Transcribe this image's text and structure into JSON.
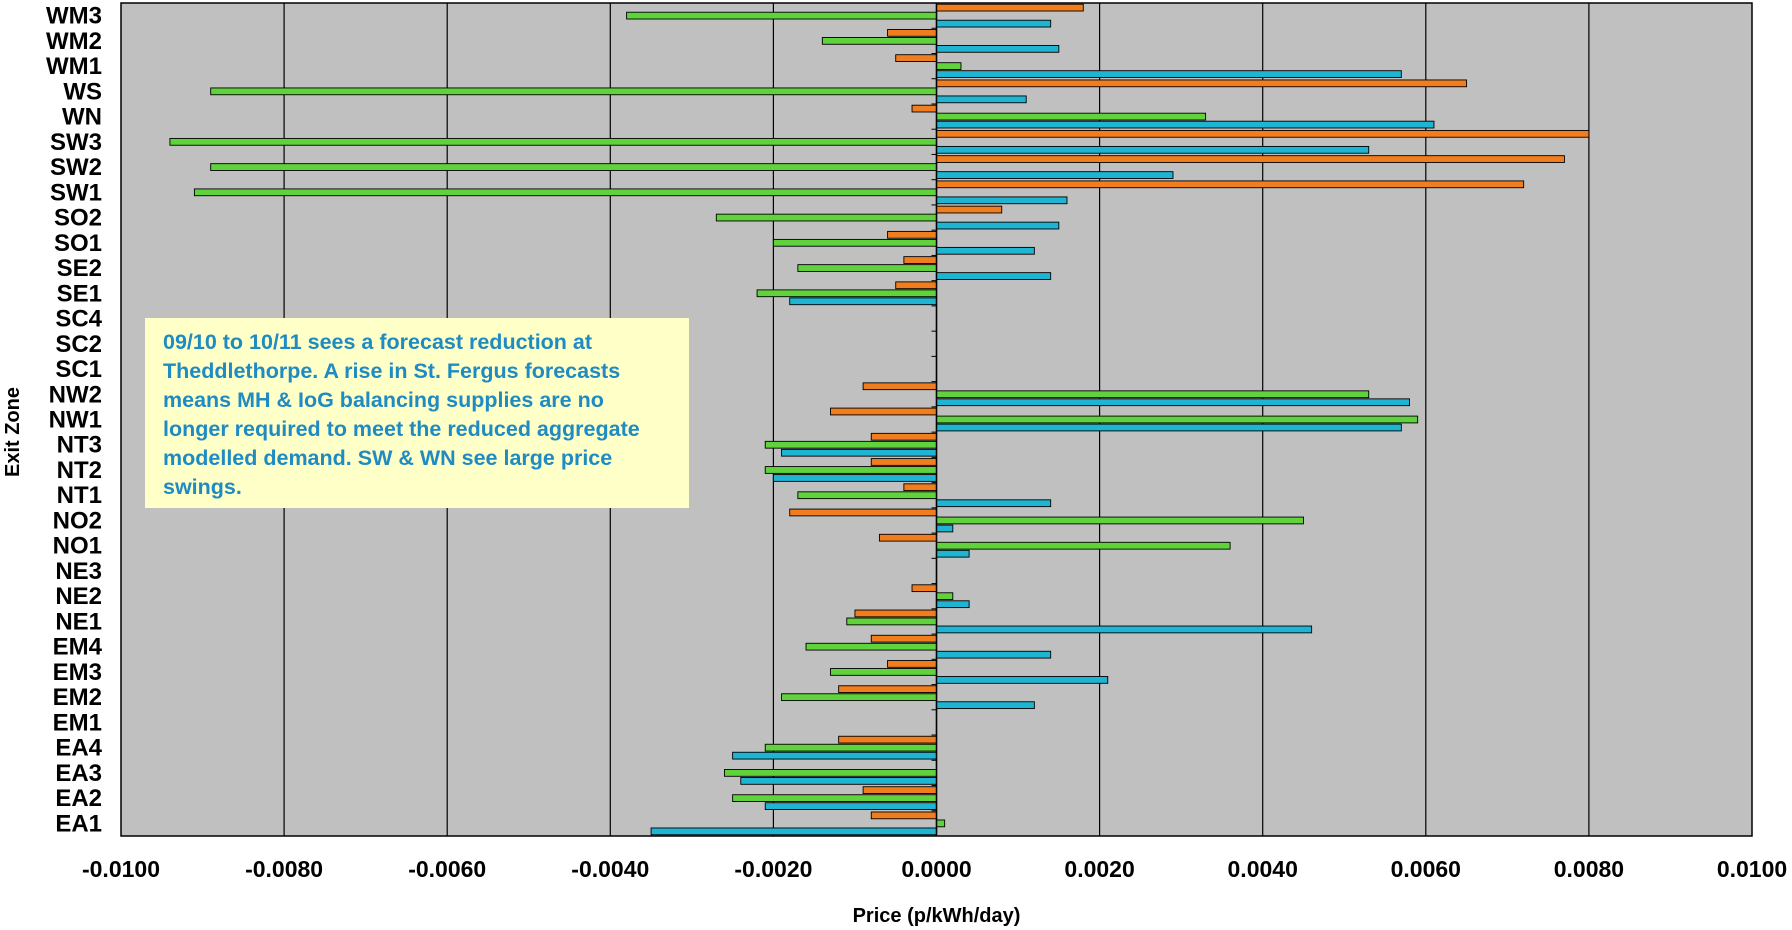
{
  "chart_data": {
    "type": "bar",
    "orientation": "horizontal",
    "title": "",
    "xlabel": "Price (p/kWh/day)",
    "ylabel": "Exit Zone",
    "xlim": [
      -0.01,
      0.01
    ],
    "x_ticks": [
      "-0.0100",
      "-0.0080",
      "-0.0060",
      "-0.0040",
      "-0.0020",
      "0.0000",
      "0.0020",
      "0.0040",
      "0.0060",
      "0.0080",
      "0.0100"
    ],
    "grid": "vertical",
    "legend": "none",
    "categories": [
      "EA1",
      "EA2",
      "EA3",
      "EA4",
      "EM1",
      "EM2",
      "EM3",
      "EM4",
      "NE1",
      "NE2",
      "NE3",
      "NO1",
      "NO2",
      "NT1",
      "NT2",
      "NT3",
      "NW1",
      "NW2",
      "SC1",
      "SC2",
      "SC4",
      "SE1",
      "SE2",
      "SO1",
      "SO2",
      "SW1",
      "SW2",
      "SW3",
      "WN",
      "WS",
      "WM1",
      "WM2",
      "WM3"
    ],
    "series": [
      {
        "color": "#1eb4d2",
        "values": [
          -0.0035,
          -0.0021,
          -0.0024,
          -0.0025,
          0,
          0.0012,
          0.0021,
          0.0014,
          0.0046,
          0.0004,
          0,
          0.0004,
          0.0002,
          0.0014,
          -0.002,
          -0.0019,
          0.0057,
          0.0058,
          0,
          0,
          0,
          -0.0018,
          0.0014,
          0.0012,
          0.0015,
          0.0016,
          0.0029,
          0.0053,
          0.0061,
          0.0011,
          0.0057,
          0.0015,
          0.0014
        ]
      },
      {
        "color": "#5fd23c",
        "values": [
          0.0001,
          -0.0025,
          -0.0026,
          -0.0021,
          0,
          -0.0019,
          -0.0013,
          -0.0016,
          -0.0011,
          0.0002,
          0,
          0.0036,
          0.0045,
          -0.0017,
          -0.0021,
          -0.0021,
          0.0059,
          0.0053,
          0,
          0,
          0,
          -0.0022,
          -0.0017,
          -0.002,
          -0.0027,
          -0.0091,
          -0.0089,
          -0.0094,
          0.0033,
          -0.0089,
          0.0003,
          -0.0014,
          -0.0038
        ]
      },
      {
        "color": "#f07d1e",
        "values": [
          -0.0008,
          -0.0009,
          0,
          -0.0012,
          0,
          -0.0012,
          -0.0006,
          -0.0008,
          -0.001,
          -0.0003,
          0,
          -0.0007,
          -0.0018,
          -0.0004,
          -0.0008,
          -0.0008,
          -0.0013,
          -0.0009,
          0,
          0,
          0,
          -0.0005,
          -0.0004,
          -0.0006,
          0.0008,
          0.0072,
          0.0077,
          0.008,
          -0.0003,
          0.0065,
          -0.0005,
          -0.0006,
          0.0018
        ]
      }
    ],
    "annotation": "09/10 to 10/11 sees a forecast reduction at Theddlethorpe. A rise in St. Fergus forecasts means MH & IoG balancing supplies are no longer required to meet the reduced aggregate modelled demand. SW & WN see large price swings."
  }
}
